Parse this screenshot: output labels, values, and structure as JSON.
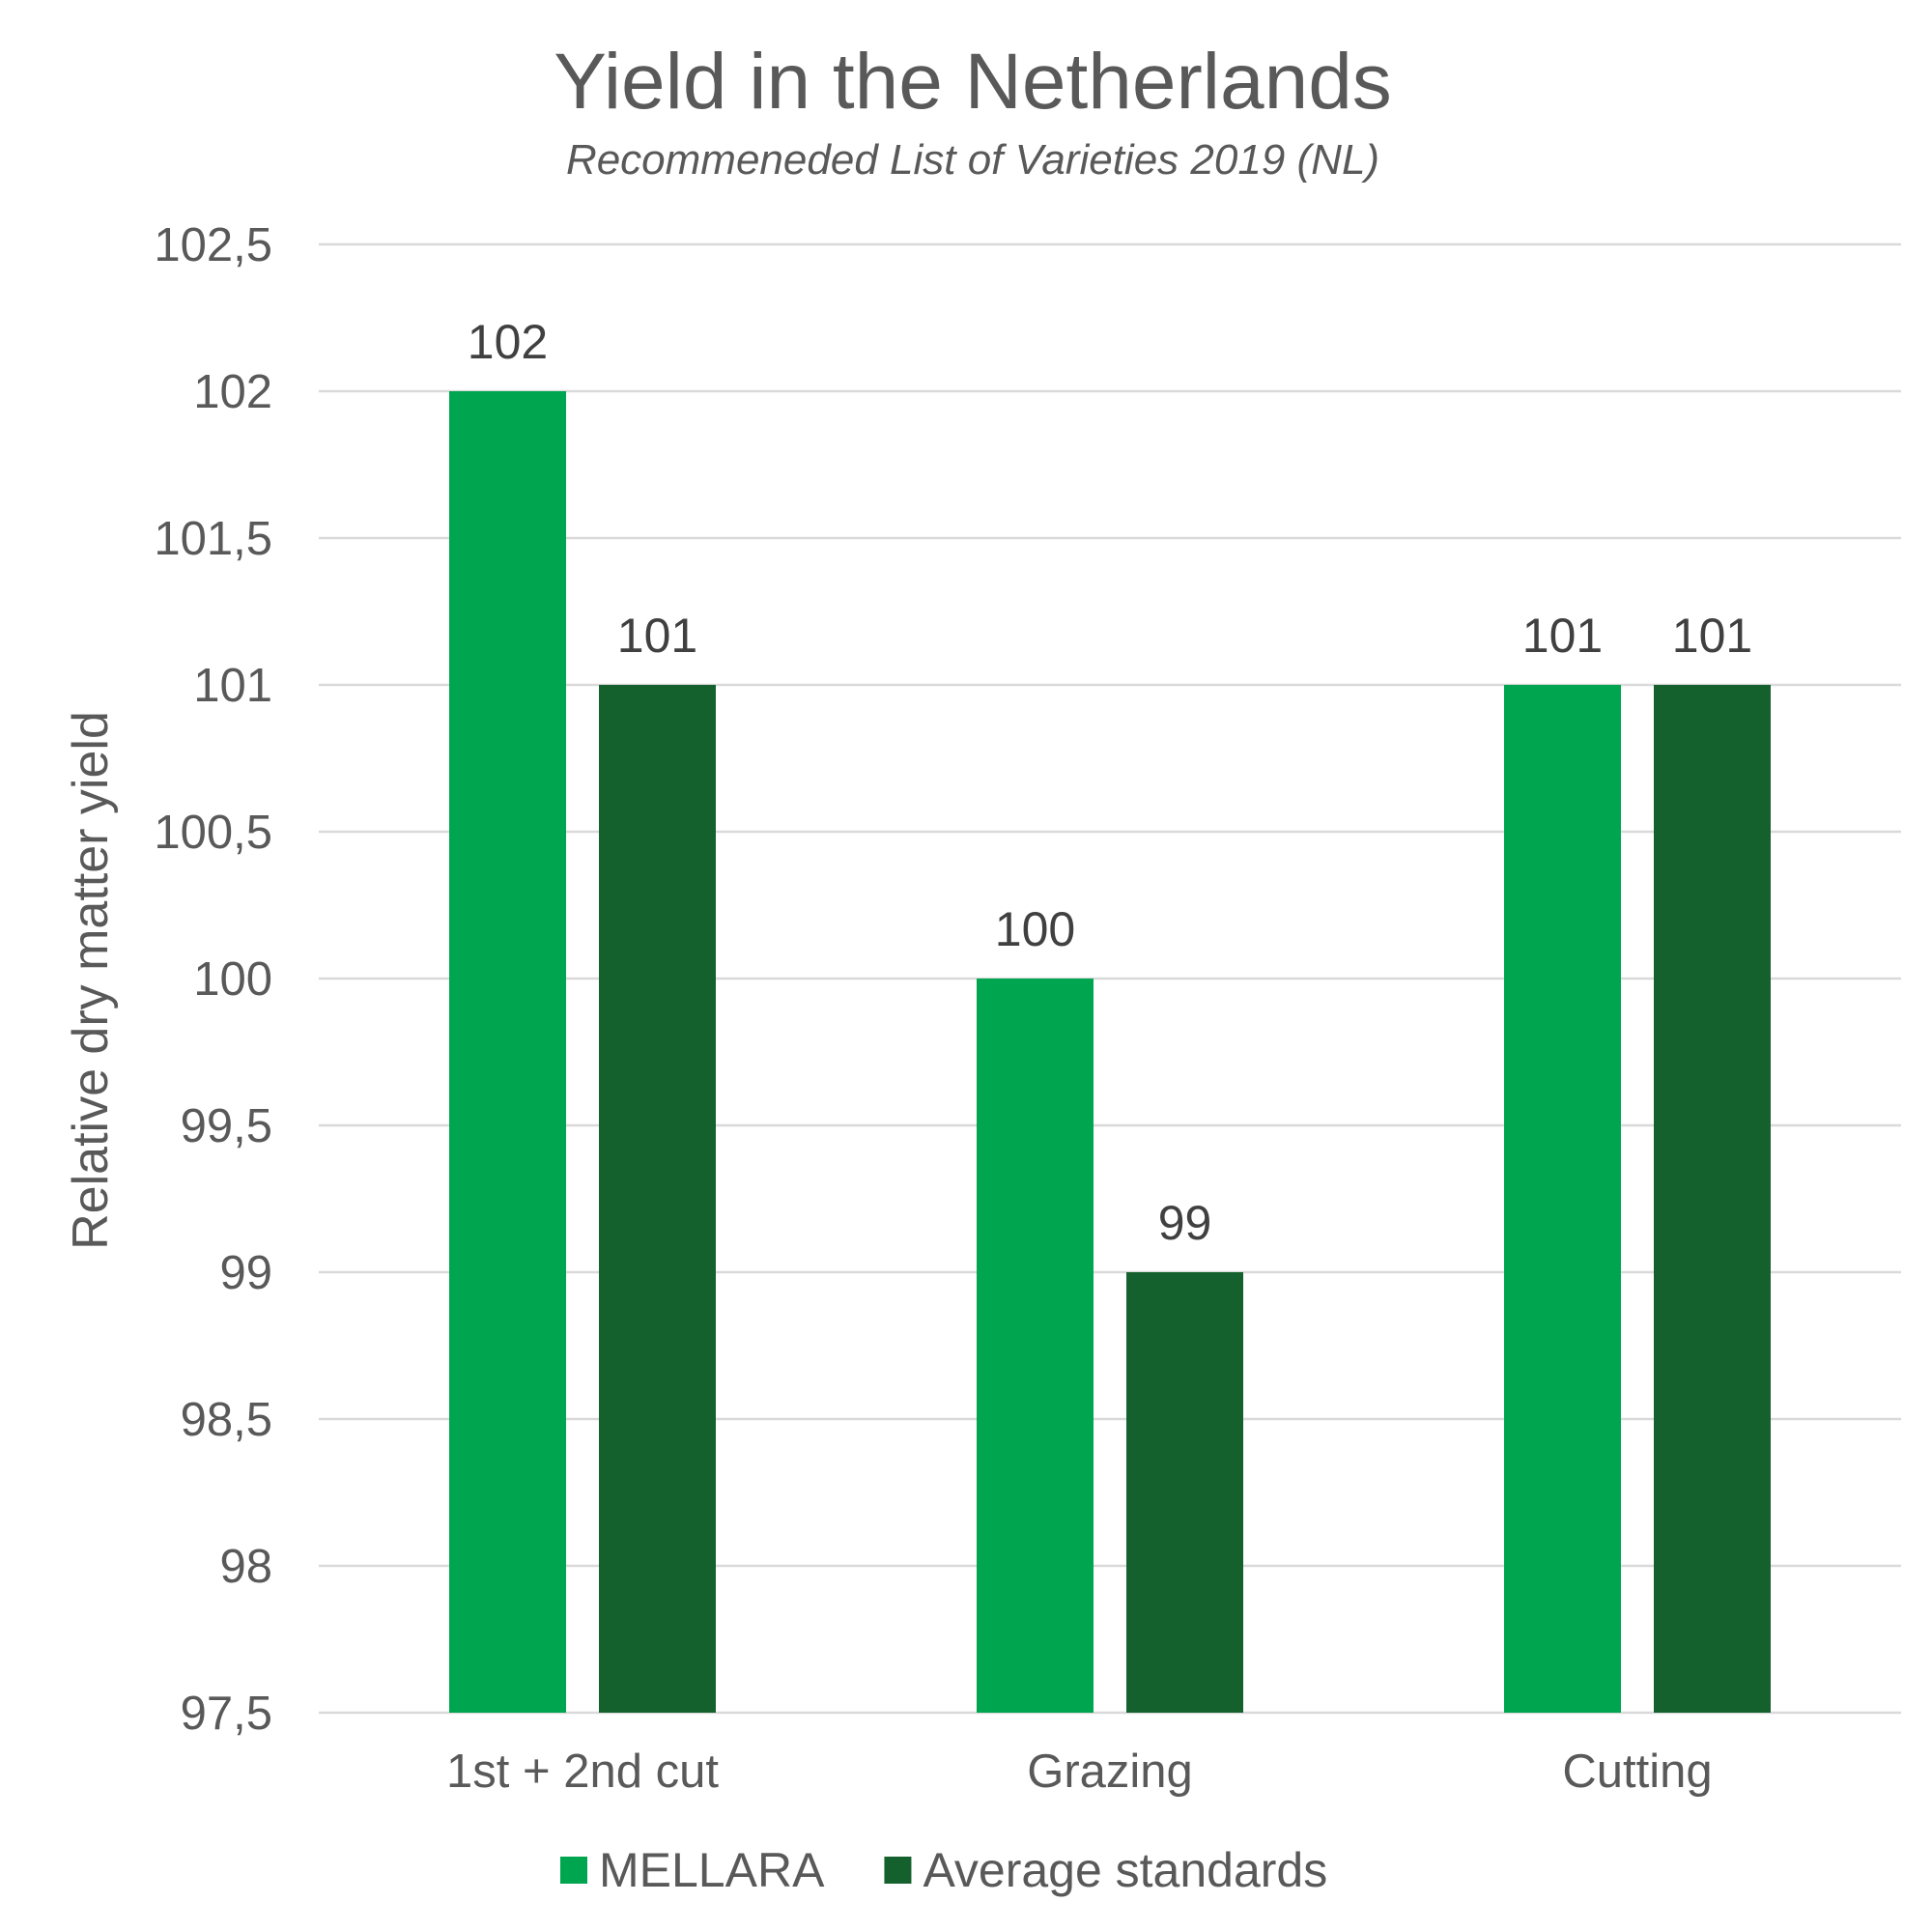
{
  "chart_data": {
    "type": "bar",
    "title": "Yield in the Netherlands",
    "subtitle": "Recommeneded List of Varieties 2019 (NL)",
    "xlabel": "",
    "ylabel": "Relative dry matter yield",
    "categories": [
      "1st + 2nd cut",
      "Grazing",
      "Cutting"
    ],
    "series": [
      {
        "name": "MELLARA",
        "color": "#00a550",
        "values": [
          102,
          100,
          101
        ]
      },
      {
        "name": "Average standards",
        "color": "#15612e",
        "values": [
          101,
          99,
          101
        ]
      }
    ],
    "ylim": [
      97.5,
      102.5
    ],
    "yticks": [
      "97,5",
      "98",
      "98,5",
      "99",
      "99,5",
      "100",
      "100,5",
      "101",
      "101,5",
      "102",
      "102,5"
    ],
    "grid": true,
    "legend_position": "bottom"
  }
}
